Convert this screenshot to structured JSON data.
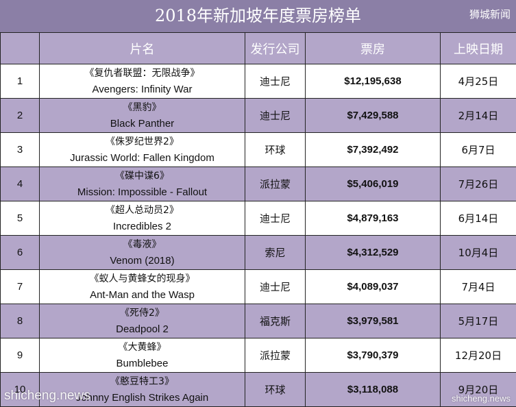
{
  "header": {
    "title": "2018年新加坡年度票房榜单",
    "source_tag": "狮城新闻"
  },
  "table": {
    "columns": [
      "",
      "片名",
      "发行公司",
      "票房",
      "上映日期"
    ],
    "rows": [
      {
        "rank": "1",
        "title_cn": "《复仇者联盟：无限战争》",
        "title_en": "Avengers: Infinity War",
        "distributor": "迪士尼",
        "gross": "$12,195,638",
        "release": "4月25日"
      },
      {
        "rank": "2",
        "title_cn": "《黑豹》",
        "title_en": "Black Panther",
        "distributor": "迪士尼",
        "gross": "$7,429,588",
        "release": "2月14日"
      },
      {
        "rank": "3",
        "title_cn": "《侏罗纪世界2》",
        "title_en": "Jurassic World: Fallen Kingdom",
        "distributor": "环球",
        "gross": "$7,392,492",
        "release": "6月7日"
      },
      {
        "rank": "4",
        "title_cn": "《碟中谍6》",
        "title_en": "Mission: Impossible - Fallout",
        "distributor": "派拉蒙",
        "gross": "$5,406,019",
        "release": "7月26日"
      },
      {
        "rank": "5",
        "title_cn": "《超人总动员2》",
        "title_en": "Incredibles 2",
        "distributor": "迪士尼",
        "gross": "$4,879,163",
        "release": "6月14日"
      },
      {
        "rank": "6",
        "title_cn": "《毒液》",
        "title_en": "Venom (2018)",
        "distributor": "索尼",
        "gross": "$4,312,529",
        "release": "10月4日"
      },
      {
        "rank": "7",
        "title_cn": "《蚁人与黄蜂女的现身》",
        "title_en": "Ant-Man and the Wasp",
        "distributor": "迪士尼",
        "gross": "$4,089,037",
        "release": "7月4日"
      },
      {
        "rank": "8",
        "title_cn": "《死侍2》",
        "title_en": "Deadpool 2",
        "distributor": "福克斯",
        "gross": "$3,979,581",
        "release": "5月17日"
      },
      {
        "rank": "9",
        "title_cn": "《大黄蜂》",
        "title_en": "Bumblebee",
        "distributor": "派拉蒙",
        "gross": "$3,790,379",
        "release": "12月20日"
      },
      {
        "rank": "10",
        "title_cn": "《憨豆特工3》",
        "title_en": "Johnny English Strikes Again",
        "distributor": "环球",
        "gross": "$3,118,088",
        "release": "9月20日"
      }
    ]
  },
  "watermark": {
    "left": "shicheng.news",
    "right": "shicheng.news"
  },
  "colors": {
    "title_bg": "#8b7fa6",
    "header_bg": "#b3a6c9",
    "stripe_bg": "#b3a6c9"
  }
}
